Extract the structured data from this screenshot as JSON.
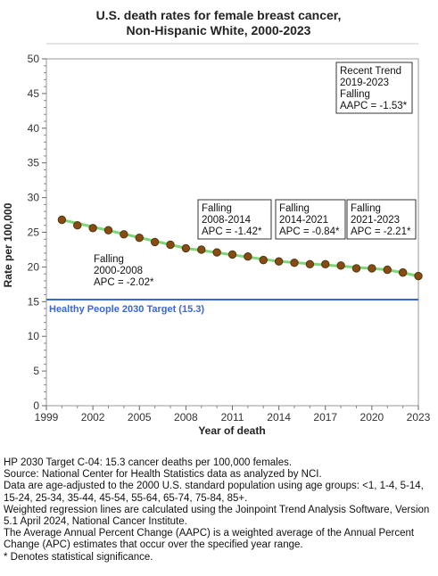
{
  "chart_data": {
    "type": "scatter",
    "title_line1": "U.S. death rates for female breast cancer,",
    "title_line2": "Non-Hispanic White,  2000-2023",
    "xlabel": "Year of death",
    "ylabel": "Rate per 100,000",
    "xlim": [
      1999,
      2023
    ],
    "ylim": [
      0,
      50
    ],
    "x_ticks": [
      "1999",
      "2002",
      "2005",
      "2008",
      "2011",
      "2014",
      "2017",
      "2020",
      "2023"
    ],
    "y_ticks": [
      "0",
      "5",
      "10",
      "15",
      "20",
      "25",
      "30",
      "35",
      "40",
      "45",
      "50"
    ],
    "x": [
      2000,
      2001,
      2002,
      2003,
      2004,
      2005,
      2006,
      2007,
      2008,
      2009,
      2010,
      2011,
      2012,
      2013,
      2014,
      2015,
      2016,
      2017,
      2018,
      2019,
      2020,
      2021,
      2022,
      2023
    ],
    "values": [
      26.8,
      26.0,
      25.6,
      25.3,
      24.7,
      24.2,
      23.6,
      23.2,
      22.7,
      22.5,
      22.1,
      21.8,
      21.5,
      21.0,
      20.8,
      20.6,
      20.4,
      20.4,
      20.2,
      19.8,
      19.8,
      19.6,
      19.2,
      18.7
    ],
    "trend_segments": [
      {
        "start_year": 2000,
        "end_year": 2008,
        "start_value": 26.8,
        "end_value": 22.7
      },
      {
        "start_year": 2008,
        "end_year": 2014,
        "start_value": 22.7,
        "end_value": 20.8
      },
      {
        "start_year": 2014,
        "end_year": 2021,
        "start_value": 20.8,
        "end_value": 19.6
      },
      {
        "start_year": 2021,
        "end_year": 2023,
        "start_value": 19.6,
        "end_value": 18.7
      }
    ],
    "target": {
      "value": 15.3,
      "label": "Healthy People 2030 Target (15.3)"
    },
    "annotations": [
      {
        "lines": [
          "Falling",
          "2000-2008",
          "APC = -2.02*"
        ],
        "border": false
      },
      {
        "lines": [
          "Falling",
          "2008-2014",
          "APC = -1.42*"
        ],
        "border": true
      },
      {
        "lines": [
          "Falling",
          "2014-2021",
          "APC = -0.84*"
        ],
        "border": true
      },
      {
        "lines": [
          "Falling",
          "2021-2023",
          "APC = -2.21*"
        ],
        "border": true
      },
      {
        "lines": [
          "Recent Trend",
          "2019-2023",
          "Falling",
          "AAPC = -1.53*"
        ],
        "border": true
      }
    ],
    "grid": false,
    "colors": {
      "point_fill": "#8b4a12",
      "point_stroke": "#4a3a10",
      "trend_line": "#7ed67a",
      "target_line": "#3a66d6",
      "plot_border": "#9a9a9a"
    }
  },
  "footnotes": [
    "HP 2030 Target C-04: 15.3 cancer deaths per 100,000 females.",
    "Source: National Center for Health Statistics data as analyzed by NCI.",
    "Data are age-adjusted to the 2000 U.S. standard population using age groups: <1, 1-4, 5-14, 15-24, 25-34, 35-44, 45-54, 55-64, 65-74, 75-84, 85+.",
    "Weighted regression lines are calculated using the Joinpoint Trend Analysis Software, Version 5.1 April 2024, National Cancer Institute.",
    "The Average Annual Percent Change (AAPC) is a weighted average of the Annual Percent Change (APC) estimates that occur over the specified year range.",
    "* Denotes statistical significance."
  ]
}
